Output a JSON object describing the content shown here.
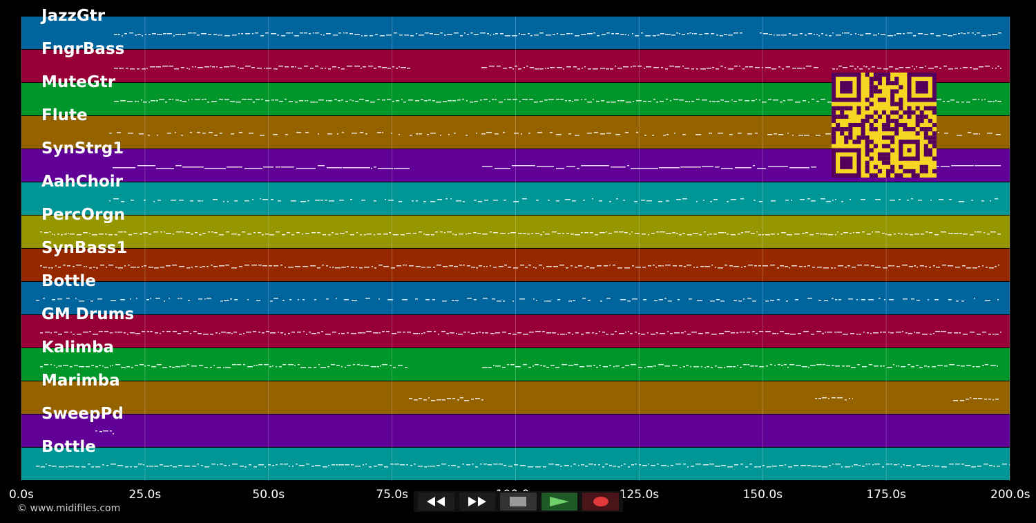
{
  "tracks": [
    {
      "name": "JazzGtr",
      "color": "#00659c"
    },
    {
      "name": "FngrBass",
      "color": "#970036"
    },
    {
      "name": "MuteGtr",
      "color": "#00962a"
    },
    {
      "name": "Flute",
      "color": "#956200"
    },
    {
      "name": "SynStrg1",
      "color": "#600096"
    },
    {
      "name": "AahChoir",
      "color": "#009696"
    },
    {
      "name": "PercOrgn",
      "color": "#959600"
    },
    {
      "name": "SynBass1",
      "color": "#962800"
    },
    {
      "name": "Bottle",
      "color": "#00659c"
    },
    {
      "name": "GM Drums",
      "color": "#970036"
    },
    {
      "name": "Kalimba",
      "color": "#00962a"
    },
    {
      "name": "Marimba",
      "color": "#956200"
    },
    {
      "name": "SweepPd",
      "color": "#600096"
    },
    {
      "name": "Bottle",
      "color": "#009696"
    }
  ],
  "timeline": {
    "ticks": [
      "0.0s",
      "25.0s",
      "50.0s",
      "75.0s",
      "100.0s",
      "125.0s",
      "150.0s",
      "175.0s",
      "200.0s"
    ]
  },
  "copyright": "© www.midifiles.com",
  "transport": {
    "buttons": [
      "rewind-icon",
      "fast-forward-icon",
      "stop-icon",
      "play-icon",
      "record-icon"
    ]
  },
  "colors": {
    "qr_background": "#f5d623",
    "qr_foreground": "#55005a",
    "note": "#ffffff"
  }
}
